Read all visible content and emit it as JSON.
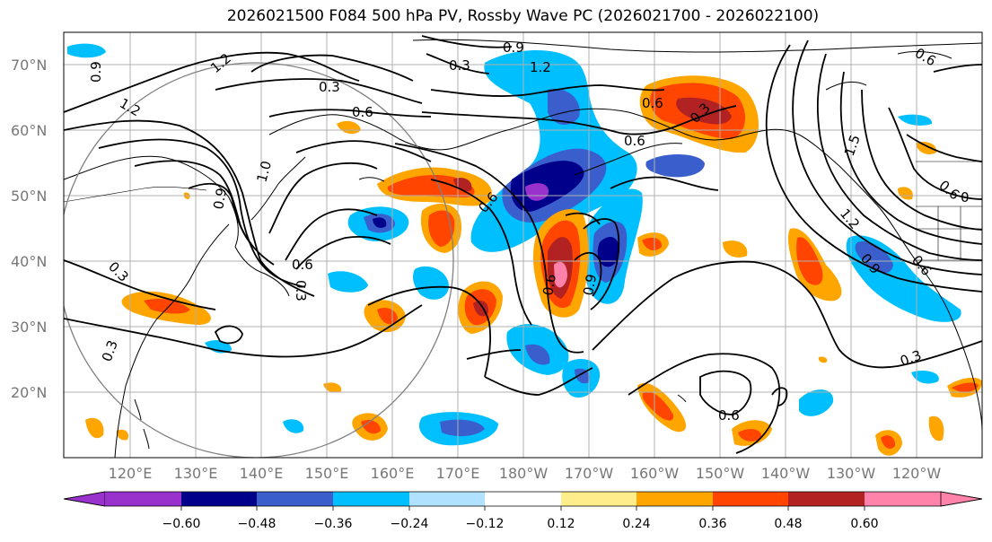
{
  "title": "2026021500 F084 500 hPa PV, Rossby Wave PC (2026021700 - 2026022100)",
  "lat_labels": [
    "70°N",
    "60°N",
    "50°N",
    "40°N",
    "30°N",
    "20°N"
  ],
  "lon_labels": [
    "120°E",
    "130°E",
    "140°E",
    "150°E",
    "160°E",
    "170°E",
    "180°W",
    "170°W",
    "160°W",
    "150°W",
    "140°W",
    "130°W",
    "120°W"
  ],
  "colorbar": {
    "colors": [
      "#9932cc",
      "#00008b",
      "#3a5fcd",
      "#00bfff",
      "#b0e2ff",
      "#ffffff",
      "#ffec8b",
      "#ffa500",
      "#ff4500",
      "#b22222",
      "#ff82ab"
    ],
    "tick_labels": [
      "−0.60",
      "−0.48",
      "−0.36",
      "−0.24",
      "−0.12",
      "0.12",
      "0.24",
      "0.36",
      "0.48",
      "0.60"
    ]
  },
  "contour_labels": [
    "0.9",
    "1.2",
    "0.3",
    "0.6",
    "1.2",
    "0.9",
    "1.2",
    "0.3",
    "0.6",
    "0.6",
    "0.3",
    "0.6",
    "0.6",
    "1.0",
    "0.3",
    "0.3",
    "0.9",
    "0.6",
    "0.3",
    "0.6",
    "1.5",
    "1.2",
    "0.9",
    "0.6",
    "0",
    "0.6",
    "0.9",
    "0.3",
    "0.6"
  ]
}
